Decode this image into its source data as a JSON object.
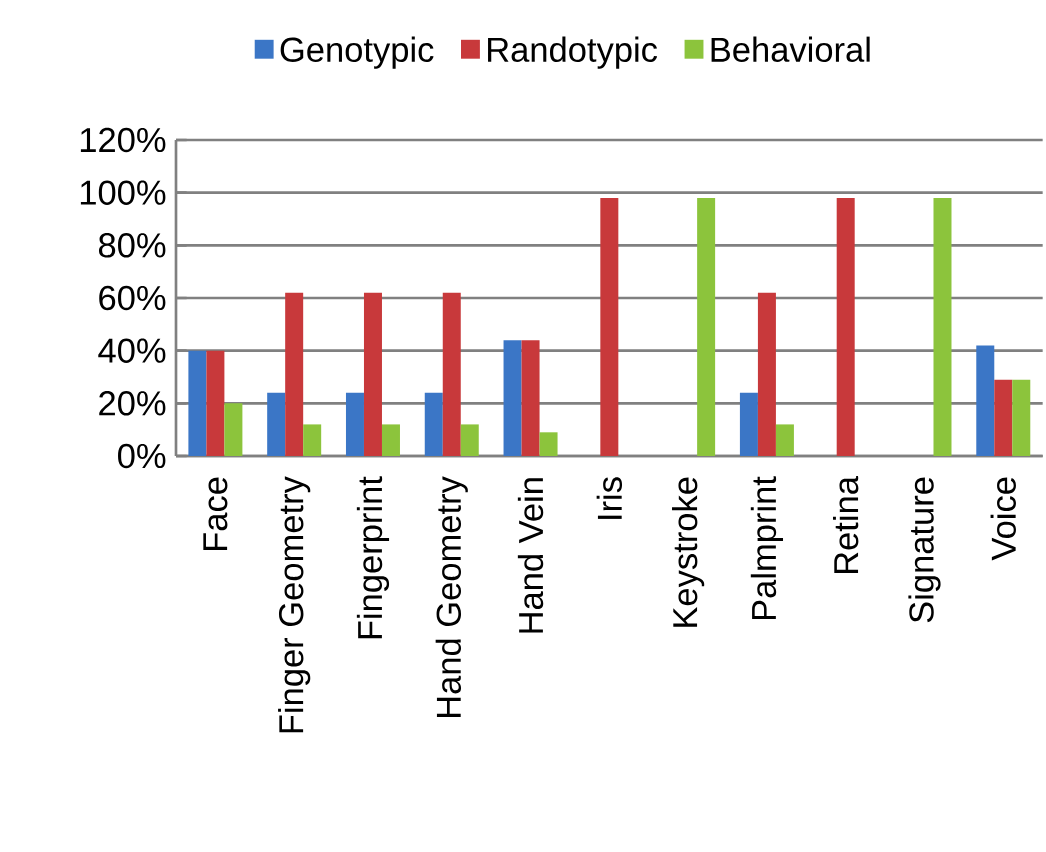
{
  "chart_data": {
    "type": "bar",
    "categories": [
      "Face",
      "Finger Geometry",
      "Fingerprint",
      "Hand Geometry",
      "Hand Vein",
      "Iris",
      "Keystroke",
      "Palmprint",
      "Retina",
      "Signature",
      "Voice"
    ],
    "series": [
      {
        "name": "Genotypic",
        "color": "#3b76c6",
        "values": [
          40,
          24,
          24,
          24,
          44,
          0,
          0,
          24,
          0,
          0,
          42
        ]
      },
      {
        "name": "Randotypic",
        "color": "#c8393b",
        "values": [
          40,
          62,
          62,
          62,
          44,
          98,
          0,
          62,
          98,
          0,
          29
        ]
      },
      {
        "name": "Behavioral",
        "color": "#8cc43c",
        "values": [
          20,
          12,
          12,
          12,
          9,
          0,
          98,
          12,
          0,
          98,
          29
        ]
      }
    ],
    "ylim": [
      0,
      120
    ],
    "yticks": [
      {
        "value": 0,
        "label": "0%"
      },
      {
        "value": 20,
        "label": "20%"
      },
      {
        "value": 40,
        "label": "40%"
      },
      {
        "value": 60,
        "label": "60%"
      },
      {
        "value": 80,
        "label": "80%"
      },
      {
        "value": 100,
        "label": "100%"
      },
      {
        "value": 120,
        "label": "120%"
      }
    ],
    "grid": "y",
    "legend": "top"
  }
}
